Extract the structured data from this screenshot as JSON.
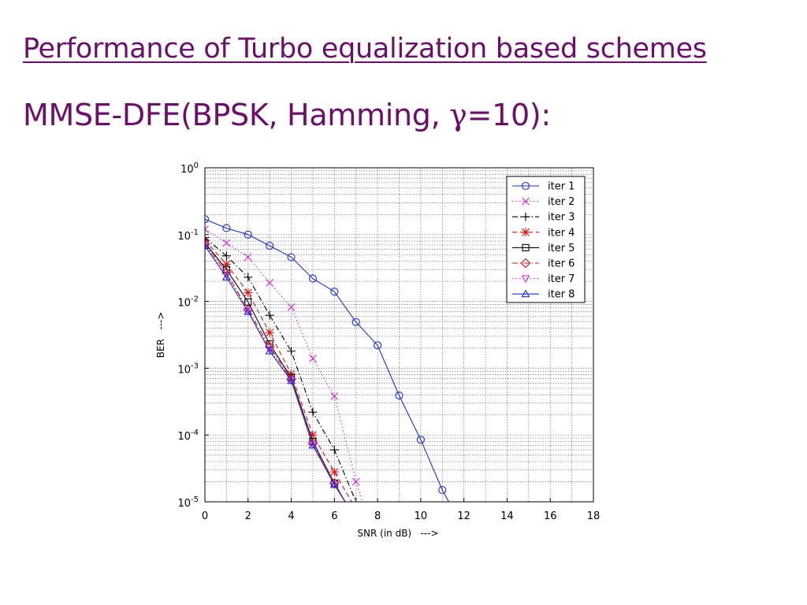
{
  "slide": {
    "title": "Performance of Turbo equalization based schemes",
    "subtitle_prefix": "MMSE-DFE(BPSK, Hamming, ",
    "subtitle_greek": "γ",
    "subtitle_suffix": "=10):"
  },
  "chart_data": {
    "type": "line",
    "title": "",
    "xlabel": "SNR (in dB)   --->",
    "ylabel": "BER   --->",
    "xlim": [
      0,
      18
    ],
    "ylim": [
      1e-05,
      1
    ],
    "yscale": "log",
    "xticks": [
      "0",
      "2",
      "4",
      "6",
      "8",
      "10",
      "12",
      "14",
      "16",
      "18"
    ],
    "yticks": [
      {
        "base": "10",
        "exp": "0"
      },
      {
        "base": "10",
        "exp": "-1"
      },
      {
        "base": "10",
        "exp": "-2"
      },
      {
        "base": "10",
        "exp": "-3"
      },
      {
        "base": "10",
        "exp": "-4"
      },
      {
        "base": "10",
        "exp": "-5"
      }
    ],
    "grid": true,
    "legend": "top-right",
    "series": [
      {
        "name": "iter 1",
        "color": "#1a2ee0",
        "dash": "solid",
        "marker": "circle",
        "x": [
          0,
          1,
          2,
          3,
          4,
          5,
          6,
          7,
          8,
          9,
          10,
          11,
          11.3
        ],
        "y": [
          0.17,
          0.125,
          0.1,
          0.068,
          0.046,
          0.022,
          0.014,
          0.0049,
          0.0022,
          0.00039,
          8.5e-05,
          1.5e-05,
          1e-05
        ],
        "marker_count": 12
      },
      {
        "name": "iter 2",
        "color": "#e020e0",
        "dash": "dotted",
        "marker": "x",
        "x": [
          0,
          1,
          2,
          3,
          4,
          5,
          6,
          7,
          7.3
        ],
        "y": [
          0.12,
          0.075,
          0.046,
          0.019,
          0.0082,
          0.0014,
          0.00038,
          2e-05,
          1e-05
        ],
        "marker_count": 8
      },
      {
        "name": "iter 3",
        "color": "#000000",
        "dash": "dashdot",
        "marker": "plus",
        "x": [
          0,
          1,
          2,
          3,
          4,
          5,
          6,
          7,
          7.1
        ],
        "y": [
          0.09,
          0.048,
          0.023,
          0.0062,
          0.0018,
          0.00022,
          6e-05,
          1e-05,
          9.5e-06
        ],
        "marker_count": 8
      },
      {
        "name": "iter 4",
        "color": "#e01010",
        "dash": "dashed",
        "marker": "asterisk",
        "x": [
          0,
          1,
          2,
          3,
          4,
          5,
          6,
          6.8
        ],
        "y": [
          0.082,
          0.036,
          0.0135,
          0.0034,
          0.00082,
          0.0001,
          2.8e-05,
          1e-05
        ],
        "marker_count": 7
      },
      {
        "name": "iter 5",
        "color": "#000000",
        "dash": "solid",
        "marker": "square",
        "x": [
          0,
          1,
          2,
          3,
          4,
          5,
          6,
          6.5
        ],
        "y": [
          0.075,
          0.03,
          0.0098,
          0.0023,
          0.00072,
          8e-05,
          1.9e-05,
          1e-05
        ],
        "marker_count": 7
      },
      {
        "name": "iter 6",
        "color": "#e01010",
        "dash": "dashdot",
        "marker": "diamond",
        "x": [
          0,
          1,
          2,
          3,
          4,
          5,
          6,
          6.5
        ],
        "y": [
          0.072,
          0.027,
          0.0075,
          0.0021,
          0.00068,
          7.5e-05,
          1.9e-05,
          1e-05
        ],
        "marker_count": 7
      },
      {
        "name": "iter 7",
        "color": "#e020e0",
        "dash": "dotted",
        "marker": "triangle-down",
        "x": [
          0,
          1,
          2,
          3,
          4,
          5,
          6,
          6.5
        ],
        "y": [
          0.07,
          0.025,
          0.0072,
          0.0019,
          0.00066,
          7.2e-05,
          1.8e-05,
          1e-05
        ],
        "marker_count": 7
      },
      {
        "name": "iter 8",
        "color": "#1a2ee0",
        "dash": "solid",
        "marker": "triangle-up",
        "x": [
          0,
          1,
          2,
          3,
          4,
          5,
          6,
          6.5
        ],
        "y": [
          0.068,
          0.023,
          0.007,
          0.0018,
          0.00065,
          7e-05,
          1.8e-05,
          1e-05
        ],
        "marker_count": 7
      }
    ]
  }
}
